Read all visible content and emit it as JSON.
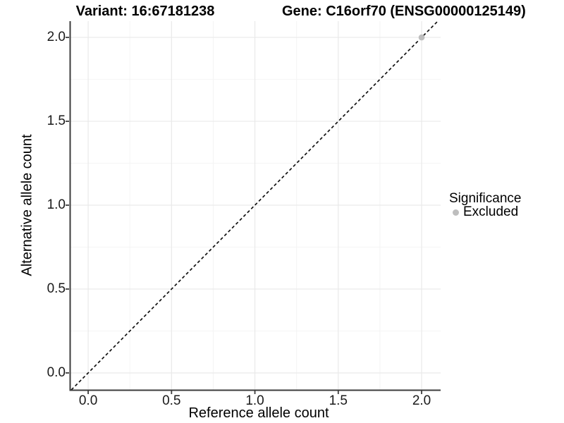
{
  "chart_data": {
    "type": "scatter",
    "title_left": "Variant: 16:67181238",
    "title_right": "Gene: C16orf70 (ENSG00000125149)",
    "xlabel": "Reference allele count",
    "ylabel": "Alternative allele count",
    "x_ticks": [
      0.0,
      0.5,
      1.0,
      1.5,
      2.0
    ],
    "y_ticks": [
      0.0,
      0.5,
      1.0,
      1.5,
      2.0
    ],
    "x_tick_labels": [
      "0.0",
      "0.5",
      "1.0",
      "1.5",
      "2.0"
    ],
    "y_tick_labels": [
      "0.0",
      "0.5",
      "1.0",
      "1.5",
      "2.0"
    ],
    "xlim": [
      -0.106,
      2.114
    ],
    "ylim": [
      -0.101,
      2.097
    ],
    "grid": {
      "major": true,
      "minor": true
    },
    "reference_line": {
      "slope": 1,
      "intercept": 0,
      "style": "dashed"
    },
    "series": [
      {
        "name": "Excluded",
        "color": "#bebebe",
        "points": [
          {
            "x": 2.0,
            "y": 2.0
          }
        ]
      }
    ],
    "legend": {
      "title": "Significance",
      "position": "right",
      "items": [
        {
          "label": "Excluded",
          "color": "#bebebe"
        }
      ]
    }
  },
  "colors": {
    "background": "#ffffff",
    "grid_major": "#e9e9e9",
    "grid_minor": "#f4f4f4",
    "axis_line": "#3c3c3c",
    "reference_line": "#111111",
    "tick_text": "#1a1a1a",
    "title_text": "#000000"
  }
}
